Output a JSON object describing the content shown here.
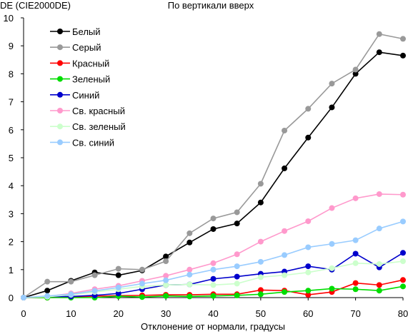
{
  "chart_data": {
    "type": "line",
    "title": "По вертикали вверх",
    "ylabel": "DE (CIE2000DE)",
    "xlabel": "Отклонение от нормали, градусы",
    "x": [
      0,
      5,
      10,
      15,
      20,
      25,
      30,
      35,
      40,
      45,
      50,
      55,
      60,
      65,
      70,
      75,
      80
    ],
    "xlim": [
      0,
      80
    ],
    "ylim": [
      0,
      10
    ],
    "xticks": [
      0,
      10,
      20,
      30,
      40,
      50,
      60,
      70,
      80
    ],
    "yticks": [
      0,
      1,
      2,
      3,
      4,
      5,
      6,
      7,
      8,
      9,
      10
    ],
    "grid": false,
    "legend_position": "top-left",
    "series": [
      {
        "name": "Белый",
        "color": "#000000",
        "values": [
          0,
          0.25,
          0.6,
          0.9,
          0.8,
          0.97,
          1.47,
          1.97,
          2.45,
          2.65,
          3.4,
          4.62,
          5.72,
          6.8,
          8.0,
          8.77,
          8.65
        ]
      },
      {
        "name": "Серый",
        "color": "#999999",
        "values": [
          0,
          0.57,
          0.57,
          0.8,
          1.03,
          1.0,
          1.3,
          2.3,
          2.83,
          3.05,
          4.07,
          5.97,
          6.75,
          7.65,
          8.15,
          9.42,
          9.25
        ]
      },
      {
        "name": "Красный",
        "color": "#ff0000",
        "values": [
          0,
          0,
          0.02,
          0.05,
          0.07,
          0.08,
          0.1,
          0.1,
          0.12,
          0.12,
          0.27,
          0.25,
          0.1,
          0.2,
          0.52,
          0.45,
          0.63
        ]
      },
      {
        "name": "Зеленый",
        "color": "#00dd00",
        "values": [
          0,
          0,
          0,
          0,
          0.05,
          0.02,
          0.06,
          0.04,
          0.06,
          0.08,
          0.12,
          0.2,
          0.25,
          0.32,
          0.3,
          0.25,
          0.4
        ]
      },
      {
        "name": "Синий",
        "color": "#0000cc",
        "values": [
          0,
          0.04,
          0.04,
          0.08,
          0.15,
          0.3,
          0.45,
          0.47,
          0.67,
          0.75,
          0.85,
          0.93,
          1.12,
          1.0,
          1.57,
          1.08,
          1.6
        ]
      },
      {
        "name": "Св. красный",
        "color": "#ff99cc",
        "values": [
          0,
          0.04,
          0.15,
          0.3,
          0.42,
          0.6,
          0.78,
          1.0,
          1.23,
          1.55,
          2.0,
          2.38,
          2.73,
          3.2,
          3.55,
          3.7,
          3.68
        ]
      },
      {
        "name": "Св. зеленый",
        "color": "#ccffcc",
        "values": [
          0,
          0.03,
          0.1,
          0.2,
          0.3,
          0.4,
          0.45,
          0.47,
          0.45,
          0.5,
          0.73,
          0.8,
          0.9,
          1.05,
          1.23,
          1.2,
          1.3
        ]
      },
      {
        "name": "Св. синий",
        "color": "#99ccff",
        "values": [
          0,
          0.06,
          0.12,
          0.24,
          0.36,
          0.5,
          0.62,
          0.82,
          1.0,
          1.12,
          1.28,
          1.52,
          1.8,
          1.92,
          2.05,
          2.47,
          2.72
        ]
      }
    ]
  }
}
